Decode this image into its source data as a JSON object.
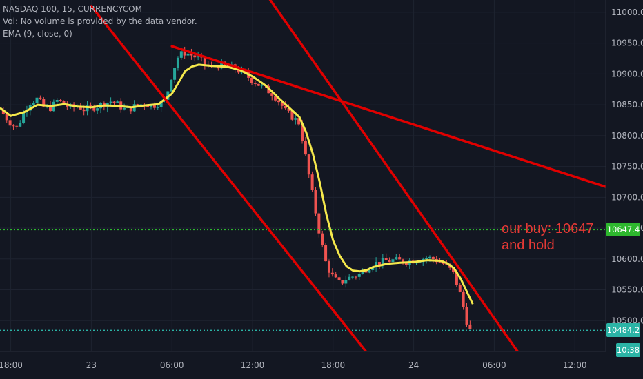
{
  "chart_data": {
    "type": "candlestick",
    "symbol": "NASDAQ 100, 15, CURRENCYCOM",
    "legend_lines": [
      "NASDAQ 100, 15, CURRENCYCOM",
      "Vol: No volume is provided by the data vendor.",
      "EMA (9, close, 0)"
    ],
    "ylim": [
      10450,
      11020
    ],
    "y_ticks": [
      "11000.0",
      "10950.0",
      "10900.0",
      "10850.0",
      "10800.0",
      "10750.0",
      "10700.0",
      "10650.0",
      "10600.0",
      "10550.0",
      "10500.0"
    ],
    "y_ticks_values": [
      11000,
      10950,
      10900,
      10850,
      10800,
      10750,
      10700,
      10650,
      10600,
      10550,
      10500
    ],
    "x_ticks": [
      "18:00",
      "23",
      "06:00",
      "12:00",
      "18:00",
      "24",
      "06:00",
      "12:00"
    ],
    "x_ticks_hours": [
      -6,
      0,
      6,
      12,
      18,
      24,
      30,
      36
    ],
    "x_range_hours": [
      -6.8,
      38.3
    ],
    "close_series": [
      {
        "t": -6.8,
        "v": 10842
      },
      {
        "t": -6.0,
        "v": 10820
      },
      {
        "t": -5.5,
        "v": 10812
      },
      {
        "t": -5.0,
        "v": 10840
      },
      {
        "t": -4.5,
        "v": 10855
      },
      {
        "t": -4.0,
        "v": 10860
      },
      {
        "t": -3.5,
        "v": 10845
      },
      {
        "t": -3.0,
        "v": 10845
      },
      {
        "t": -2.5,
        "v": 10858
      },
      {
        "t": -2.0,
        "v": 10850
      },
      {
        "t": -1.5,
        "v": 10845
      },
      {
        "t": -1.0,
        "v": 10848
      },
      {
        "t": -0.5,
        "v": 10842
      },
      {
        "t": 0.0,
        "v": 10845
      },
      {
        "t": 0.5,
        "v": 10848
      },
      {
        "t": 1.0,
        "v": 10852
      },
      {
        "t": 1.5,
        "v": 10856
      },
      {
        "t": 2.0,
        "v": 10850
      },
      {
        "t": 2.5,
        "v": 10842
      },
      {
        "t": 3.0,
        "v": 10845
      },
      {
        "t": 3.5,
        "v": 10850
      },
      {
        "t": 4.0,
        "v": 10852
      },
      {
        "t": 4.5,
        "v": 10848
      },
      {
        "t": 5.0,
        "v": 10852
      },
      {
        "t": 5.5,
        "v": 10856
      },
      {
        "t": 6.0,
        "v": 10900
      },
      {
        "t": 6.5,
        "v": 10930
      },
      {
        "t": 7.0,
        "v": 10935
      },
      {
        "t": 7.5,
        "v": 10930
      },
      {
        "t": 8.0,
        "v": 10925
      },
      {
        "t": 8.5,
        "v": 10915
      },
      {
        "t": 9.0,
        "v": 10910
      },
      {
        "t": 9.5,
        "v": 10915
      },
      {
        "t": 10.0,
        "v": 10912
      },
      {
        "t": 10.5,
        "v": 10910
      },
      {
        "t": 11.0,
        "v": 10905
      },
      {
        "t": 11.5,
        "v": 10898
      },
      {
        "t": 12.0,
        "v": 10890
      },
      {
        "t": 12.5,
        "v": 10882
      },
      {
        "t": 13.0,
        "v": 10875
      },
      {
        "t": 13.5,
        "v": 10868
      },
      {
        "t": 14.0,
        "v": 10855
      },
      {
        "t": 14.5,
        "v": 10838
      },
      {
        "t": 15.0,
        "v": 10830
      },
      {
        "t": 15.5,
        "v": 10820
      },
      {
        "t": 16.0,
        "v": 10760
      },
      {
        "t": 16.5,
        "v": 10700
      },
      {
        "t": 17.0,
        "v": 10640
      },
      {
        "t": 17.5,
        "v": 10590
      },
      {
        "t": 18.0,
        "v": 10570
      },
      {
        "t": 18.5,
        "v": 10560
      },
      {
        "t": 19.0,
        "v": 10568
      },
      {
        "t": 19.5,
        "v": 10572
      },
      {
        "t": 20.0,
        "v": 10575
      },
      {
        "t": 20.5,
        "v": 10585
      },
      {
        "t": 21.0,
        "v": 10592
      },
      {
        "t": 21.5,
        "v": 10595
      },
      {
        "t": 22.0,
        "v": 10597
      },
      {
        "t": 22.5,
        "v": 10598
      },
      {
        "t": 23.0,
        "v": 10597
      },
      {
        "t": 23.5,
        "v": 10596
      },
      {
        "t": 24.0,
        "v": 10598
      },
      {
        "t": 24.5,
        "v": 10600
      },
      {
        "t": 25.0,
        "v": 10602
      },
      {
        "t": 25.5,
        "v": 10600
      },
      {
        "t": 26.0,
        "v": 10595
      },
      {
        "t": 26.5,
        "v": 10588
      },
      {
        "t": 27.0,
        "v": 10575
      },
      {
        "t": 27.5,
        "v": 10540
      },
      {
        "t": 28.0,
        "v": 10495
      },
      {
        "t": 28.2,
        "v": 10484.2
      }
    ],
    "ema_series": [
      {
        "t": -6.8,
        "v": 10845
      },
      {
        "t": -6.0,
        "v": 10832
      },
      {
        "t": -5.0,
        "v": 10838
      },
      {
        "t": -4.0,
        "v": 10850
      },
      {
        "t": -3.0,
        "v": 10848
      },
      {
        "t": -2.0,
        "v": 10851
      },
      {
        "t": -1.0,
        "v": 10847
      },
      {
        "t": 0.0,
        "v": 10846
      },
      {
        "t": 1.0,
        "v": 10849
      },
      {
        "t": 2.0,
        "v": 10848
      },
      {
        "t": 3.0,
        "v": 10846
      },
      {
        "t": 4.0,
        "v": 10849
      },
      {
        "t": 5.0,
        "v": 10851
      },
      {
        "t": 6.0,
        "v": 10868
      },
      {
        "t": 7.0,
        "v": 10905
      },
      {
        "t": 7.5,
        "v": 10912
      },
      {
        "t": 8.0,
        "v": 10915
      },
      {
        "t": 9.0,
        "v": 10913
      },
      {
        "t": 10.0,
        "v": 10912
      },
      {
        "t": 11.0,
        "v": 10907
      },
      {
        "t": 12.0,
        "v": 10896
      },
      {
        "t": 13.0,
        "v": 10881
      },
      {
        "t": 14.0,
        "v": 10860
      },
      {
        "t": 15.0,
        "v": 10840
      },
      {
        "t": 15.5,
        "v": 10830
      },
      {
        "t": 16.0,
        "v": 10805
      },
      {
        "t": 16.5,
        "v": 10770
      },
      {
        "t": 17.0,
        "v": 10725
      },
      {
        "t": 17.5,
        "v": 10672
      },
      {
        "t": 18.0,
        "v": 10630
      },
      {
        "t": 18.5,
        "v": 10605
      },
      {
        "t": 19.0,
        "v": 10588
      },
      {
        "t": 19.5,
        "v": 10581
      },
      {
        "t": 20.0,
        "v": 10580
      },
      {
        "t": 20.5,
        "v": 10582
      },
      {
        "t": 21.0,
        "v": 10587
      },
      {
        "t": 22.0,
        "v": 10592
      },
      {
        "t": 23.0,
        "v": 10594
      },
      {
        "t": 24.0,
        "v": 10595
      },
      {
        "t": 25.0,
        "v": 10598
      },
      {
        "t": 26.0,
        "v": 10597
      },
      {
        "t": 26.5,
        "v": 10593
      },
      {
        "t": 27.0,
        "v": 10585
      },
      {
        "t": 27.5,
        "v": 10568
      },
      {
        "t": 28.0,
        "v": 10545
      },
      {
        "t": 28.4,
        "v": 10527
      }
    ],
    "trendlines": [
      {
        "name": "upper-descending",
        "points": [
          {
            "t": 13.0,
            "v": 11030
          },
          {
            "t": 34.0,
            "v": 10380
          }
        ]
      },
      {
        "name": "lower-descending",
        "points": [
          {
            "t": 0.0,
            "v": 11010
          },
          {
            "t": 23.0,
            "v": 10380
          }
        ]
      },
      {
        "name": "upper-shallow",
        "points": [
          {
            "t": 6.0,
            "v": 10945
          },
          {
            "t": 38.3,
            "v": 10717
          }
        ]
      }
    ],
    "horizontal_lines": [
      {
        "name": "buy-level",
        "value": 10647.4,
        "label": "10647.4",
        "style": "dotted",
        "color": "#2eb82e"
      },
      {
        "name": "last-price",
        "value": 10484.2,
        "label": "10484.2",
        "style": "dotted",
        "color": "#2bb4a6"
      }
    ],
    "countdown_label": "10:38",
    "annotation": [
      "our buy: 10647",
      "and hold"
    ],
    "colors": {
      "background": "#131722",
      "up": "#26a69a",
      "down": "#ef5350",
      "ema": "#f5e94c",
      "trendline": "#e00000",
      "axis_text": "#b2b5be",
      "grid": "#1e2330"
    }
  }
}
